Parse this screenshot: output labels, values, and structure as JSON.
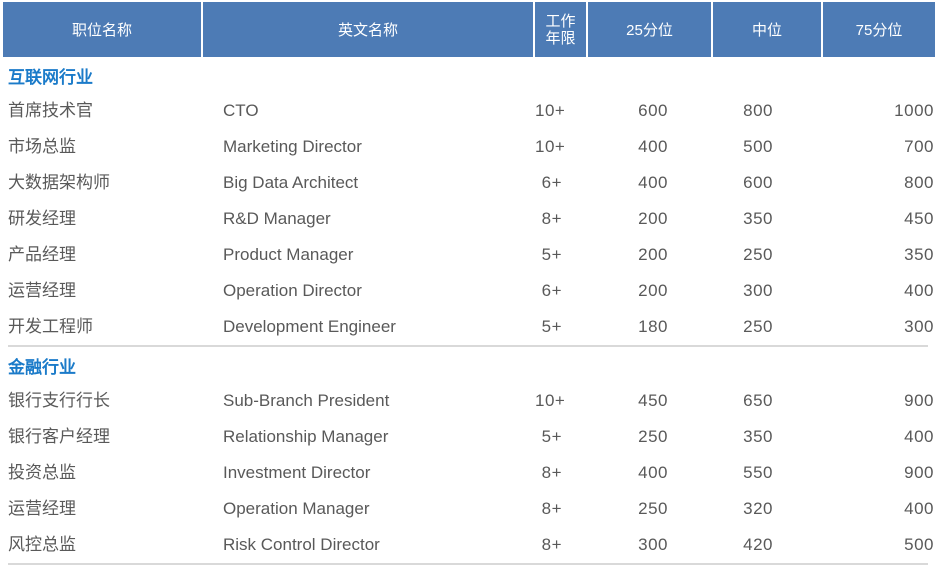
{
  "chart_data": {
    "type": "table",
    "columns": [
      {
        "label": "职位名称"
      },
      {
        "label": "英文名称"
      },
      {
        "label": "工作年限",
        "lines": [
          "工作",
          "年限"
        ]
      },
      {
        "label": "25分位"
      },
      {
        "label": "中位"
      },
      {
        "label": "75分位"
      }
    ],
    "sections": [
      {
        "title": "互联网行业",
        "rows": [
          {
            "position_cn": "首席技术官",
            "position_en": "CTO",
            "years": "10+",
            "p25": "600",
            "median": "800",
            "p75": "1000"
          },
          {
            "position_cn": "市场总监",
            "position_en": "Marketing Director",
            "years": "10+",
            "p25": "400",
            "median": "500",
            "p75": "700"
          },
          {
            "position_cn": "大数据架构师",
            "position_en": "Big Data Architect",
            "years": "6+",
            "p25": "400",
            "median": "600",
            "p75": "800"
          },
          {
            "position_cn": "研发经理",
            "position_en": "R&D Manager",
            "years": "8+",
            "p25": "200",
            "median": "350",
            "p75": "450"
          },
          {
            "position_cn": "产品经理",
            "position_en": "Product Manager",
            "years": "5+",
            "p25": "200",
            "median": "250",
            "p75": "350"
          },
          {
            "position_cn": "运营经理",
            "position_en": "Operation Director",
            "years": "6+",
            "p25": "200",
            "median": "300",
            "p75": "400"
          },
          {
            "position_cn": "开发工程师",
            "position_en": "Development Engineer",
            "years": "5+",
            "p25": "180",
            "median": "250",
            "p75": "300"
          }
        ]
      },
      {
        "title": "金融行业",
        "rows": [
          {
            "position_cn": "银行支行行长",
            "position_en": "Sub-Branch President",
            "years": "10+",
            "p25": "450",
            "median": "650",
            "p75": "900"
          },
          {
            "position_cn": "银行客户经理",
            "position_en": "Relationship Manager",
            "years": "5+",
            "p25": "250",
            "median": "350",
            "p75": "400"
          },
          {
            "position_cn": "投资总监",
            "position_en": "Investment Director",
            "years": "8+",
            "p25": "400",
            "median": "550",
            "p75": "900"
          },
          {
            "position_cn": "运营经理",
            "position_en": "Operation Manager",
            "years": "8+",
            "p25": "250",
            "median": "320",
            "p75": "400"
          },
          {
            "position_cn": "风控总监",
            "position_en": "Risk Control Director",
            "years": "8+",
            "p25": "300",
            "median": "420",
            "p75": "500"
          }
        ]
      }
    ]
  },
  "colors": {
    "header_bg": "#4d7bb5",
    "header_text": "#ffffff",
    "section_title": "#1b7bc9",
    "body_text": "#595959",
    "divider": "#d9d9d9"
  }
}
